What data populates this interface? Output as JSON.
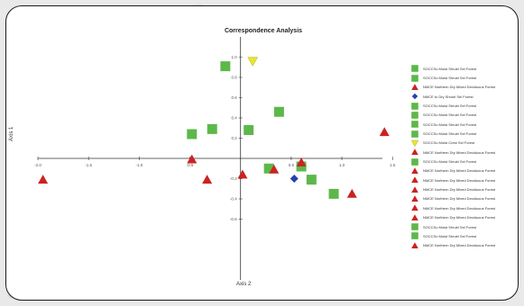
{
  "colors": {
    "green": "#5db84a",
    "red": "#cc2222",
    "blue": "#2a3fb0",
    "yellow": "#e8e434",
    "axis": "#333333",
    "frame": "#1a1a1a"
  },
  "chart_data": {
    "type": "scatter",
    "title": "Correspondence Analysis",
    "ylabel": "Axis 1",
    "xlabel": "Axis 2",
    "xlim": [
      -2.0,
      1.4
    ],
    "ylim": [
      -1.2,
      1.2
    ],
    "x_ticks": [
      {
        "value": -2.0,
        "label": "-2.0"
      },
      {
        "value": -1.5,
        "label": "-1.5"
      },
      {
        "value": -1.0,
        "label": "-1.0"
      },
      {
        "value": -0.5,
        "label": "-0.5"
      },
      {
        "value": 0.5,
        "label": "0.5"
      },
      {
        "value": 1.0,
        "label": "1.0"
      },
      {
        "value": 1.5,
        "label": "1.5"
      }
    ],
    "y_ticks": [
      {
        "value": 1.0,
        "label": "1.0"
      },
      {
        "value": 0.8,
        "label": "0.8"
      },
      {
        "value": 0.6,
        "label": "0.6"
      },
      {
        "value": 0.4,
        "label": "0.4"
      },
      {
        "value": 0.2,
        "label": "0.2"
      },
      {
        "value": -0.2,
        "label": "-0.2"
      },
      {
        "value": -0.4,
        "label": "-0.4"
      },
      {
        "value": -0.6,
        "label": "-0.6"
      }
    ],
    "legend_position": "right",
    "points": [
      {
        "x": -0.15,
        "y": 0.91,
        "shape": "square",
        "color": "green"
      },
      {
        "x": 0.12,
        "y": 0.96,
        "shape": "triangle-down",
        "color": "yellow"
      },
      {
        "x": 0.38,
        "y": 0.46,
        "shape": "square",
        "color": "green"
      },
      {
        "x": -0.48,
        "y": 0.24,
        "shape": "square",
        "color": "green"
      },
      {
        "x": -0.28,
        "y": 0.29,
        "shape": "square",
        "color": "green"
      },
      {
        "x": 0.08,
        "y": 0.28,
        "shape": "square",
        "color": "green"
      },
      {
        "x": 1.42,
        "y": 0.26,
        "shape": "triangle",
        "color": "red"
      },
      {
        "x": -0.48,
        "y": -0.01,
        "shape": "triangle",
        "color": "red"
      },
      {
        "x": 0.28,
        "y": -0.1,
        "shape": "square",
        "color": "green"
      },
      {
        "x": 0.33,
        "y": -0.11,
        "shape": "triangle",
        "color": "red"
      },
      {
        "x": 0.6,
        "y": -0.08,
        "shape": "square",
        "color": "green"
      },
      {
        "x": 0.6,
        "y": -0.04,
        "shape": "triangle",
        "color": "red"
      },
      {
        "x": 0.02,
        "y": -0.16,
        "shape": "triangle",
        "color": "red"
      },
      {
        "x": -0.33,
        "y": -0.21,
        "shape": "triangle",
        "color": "red"
      },
      {
        "x": 0.53,
        "y": -0.2,
        "shape": "diamond",
        "color": "blue"
      },
      {
        "x": 0.7,
        "y": -0.21,
        "shape": "square",
        "color": "green"
      },
      {
        "x": -1.95,
        "y": -0.21,
        "shape": "triangle",
        "color": "red"
      },
      {
        "x": 0.92,
        "y": -0.35,
        "shape": "square",
        "color": "green"
      },
      {
        "x": 1.1,
        "y": -0.35,
        "shape": "triangle",
        "color": "red"
      }
    ]
  },
  "legend": [
    {
      "label": "SOCCSo Moist Shrubl Sel Forest",
      "shape": "square",
      "color": "green"
    },
    {
      "label": "SOCCSo Moist Shrubl Sel Forest",
      "shape": "square",
      "color": "green"
    },
    {
      "label": "NMCE Northern Dry Mixed Deciduous Forest",
      "shape": "triangle",
      "color": "red"
    },
    {
      "label": "NMCE to Dry Shrubl Sel Forest",
      "shape": "diamond",
      "color": "blue"
    },
    {
      "label": "SOCCSo Moist Shrubl Sel Forest",
      "shape": "square",
      "color": "green"
    },
    {
      "label": "SOCCSo Moist Shrubl Sel Forest",
      "shape": "square",
      "color": "green"
    },
    {
      "label": "SOCCSo Moist Shrubl Sel Forest",
      "shape": "square",
      "color": "green"
    },
    {
      "label": "SOCCSo Moist Shrubl Sel Forest",
      "shape": "square",
      "color": "green"
    },
    {
      "label": "SOCCSo Moist Crest Sel Forest",
      "shape": "triangle-down",
      "color": "yellow"
    },
    {
      "label": "NMCE Northern Dry Mixed Deciduous Forest",
      "shape": "triangle",
      "color": "red"
    },
    {
      "label": "SOCCSo Moist Shrubl Sel Forest",
      "shape": "square",
      "color": "green"
    },
    {
      "label": "NMCE Northern Dry Mixed Deciduous Forest",
      "shape": "triangle",
      "color": "red"
    },
    {
      "label": "NMCE Northern Dry Mixed Deciduous Forest",
      "shape": "triangle",
      "color": "red"
    },
    {
      "label": "NMCE Northern Dry Mixed Deciduous Forest",
      "shape": "triangle",
      "color": "red"
    },
    {
      "label": "NMCE Northern Dry Mixed Deciduous Forest",
      "shape": "triangle",
      "color": "red"
    },
    {
      "label": "NMCE Northern Dry Mixed Deciduous Forest",
      "shape": "triangle",
      "color": "red"
    },
    {
      "label": "NMCE Northern Dry Mixed Deciduous Forest",
      "shape": "triangle",
      "color": "red"
    },
    {
      "label": "SOCCSo Moist Shrubl Sel Forest",
      "shape": "square",
      "color": "green"
    },
    {
      "label": "SOCCSo Moist Shrubl Sel Forest",
      "shape": "square",
      "color": "green"
    },
    {
      "label": "NMCE Northern Dry Mixed Deciduous Forest",
      "shape": "triangle",
      "color": "red"
    }
  ]
}
